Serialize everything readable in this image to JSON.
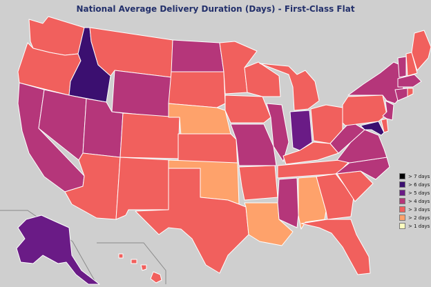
{
  "title": "National Average Delivery Duration (Days) - First-Class Flat",
  "colors": {
    "gt7": "#000004",
    "gt6": "#3b0f70",
    "gt5": "#6a1b86",
    "gt4": "#b5367a",
    "gt3": "#f1605d",
    "gt2": "#fea26b",
    "gt1": "#fcfdbf",
    "background": "#cfcfcf"
  },
  "legend": [
    {
      "label": "> 7 days",
      "color": "#000004"
    },
    {
      "label": "> 6 days",
      "color": "#3b0f70"
    },
    {
      "label": "> 5 days",
      "color": "#6a1b86"
    },
    {
      "label": "> 4 days",
      "color": "#b5367a"
    },
    {
      "label": "> 3 days",
      "color": "#f1605d"
    },
    {
      "label": "> 2 days",
      "color": "#fea26b"
    },
    {
      "label": "> 1 days",
      "color": "#fcfdbf"
    }
  ]
}
